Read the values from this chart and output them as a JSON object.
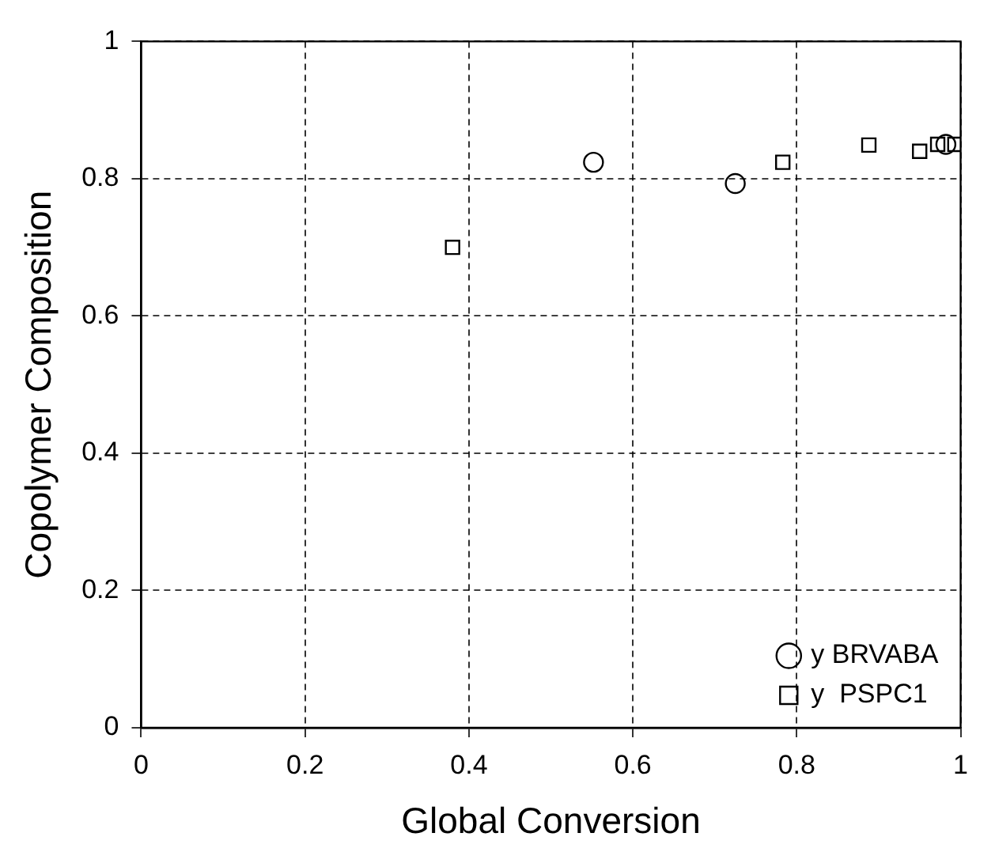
{
  "chart_data": {
    "type": "scatter",
    "xlabel": "Global Conversion",
    "ylabel": "Copolymer Composition",
    "xlim": [
      0,
      1
    ],
    "ylim": [
      0,
      1
    ],
    "xticks": [
      0,
      0.2,
      0.4,
      0.6,
      0.8,
      1
    ],
    "yticks": [
      0,
      0.2,
      0.4,
      0.6,
      0.8,
      1
    ],
    "grid": true,
    "legend": "bottom right",
    "series": [
      {
        "name": "y BRVABA",
        "color": "#000000",
        "marker": "circle",
        "x": [
          0.552,
          0.725,
          0.982
        ],
        "values": [
          0.824,
          0.793,
          0.85
        ]
      },
      {
        "name": "y  PSPC1",
        "color": "#000000",
        "marker": "square",
        "x": [
          0.38,
          0.783,
          0.888,
          0.95,
          0.972,
          0.993
        ],
        "values": [
          0.7,
          0.824,
          0.849,
          0.84,
          0.85,
          0.85
        ]
      }
    ]
  }
}
